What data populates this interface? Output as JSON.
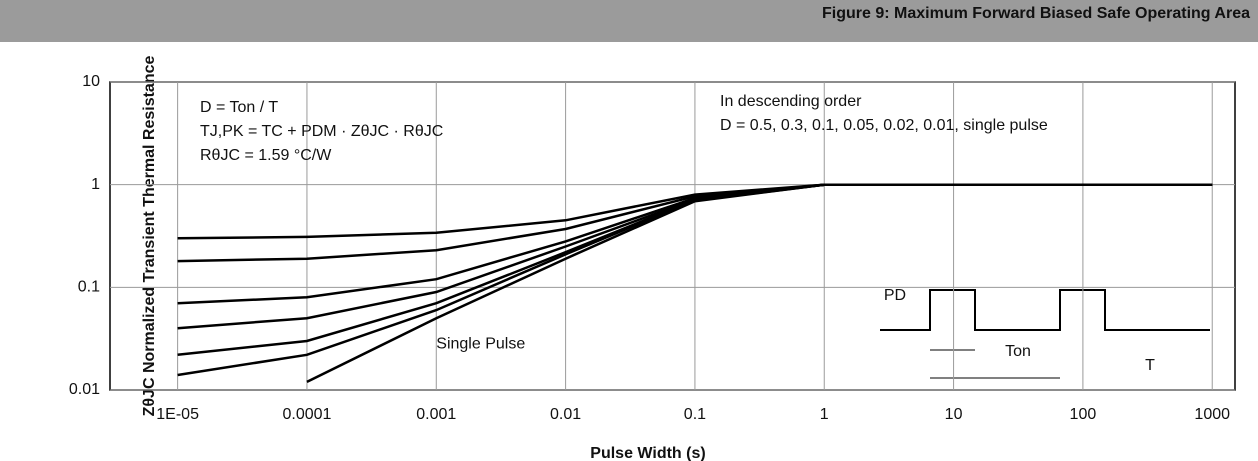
{
  "chart_data": {
    "type": "line",
    "header": "Figure 9: Maximum Forward Biased Safe Operating Area",
    "x_label": "Pulse Width (s)",
    "y_label": "ZθJC Normalized Transient Thermal Resistance",
    "x": [
      1e-05,
      0.0001,
      0.001,
      0.01,
      0.1,
      1,
      10,
      100,
      1000
    ],
    "xscale": "log",
    "yscale": "log",
    "xlim": [
      3e-06,
      1500
    ],
    "ylim": [
      0.01,
      10
    ],
    "xticks": [
      {
        "value": 1e-05,
        "label": "1E-05"
      },
      0.0001,
      0.001,
      0.01,
      0.1,
      1,
      10,
      100,
      1000
    ],
    "yticks": [
      0.01,
      0.1,
      1,
      10
    ],
    "grid": true,
    "series": [
      {
        "color": "#000000",
        "values": [
          0.3,
          0.31,
          0.34,
          0.45,
          0.8,
          1,
          1,
          1,
          1
        ]
      },
      {
        "color": "#000000",
        "values": [
          0.18,
          0.19,
          0.23,
          0.37,
          0.77,
          1,
          1,
          1,
          1
        ]
      },
      {
        "color": "#000000",
        "values": [
          0.07,
          0.08,
          0.12,
          0.28,
          0.74,
          1,
          1,
          1,
          1
        ]
      },
      {
        "color": "#000000",
        "values": [
          0.04,
          0.05,
          0.09,
          0.25,
          0.72,
          1,
          1,
          1,
          1
        ]
      },
      {
        "color": "#000000",
        "values": [
          0.022,
          0.03,
          0.07,
          0.22,
          0.71,
          1,
          1,
          1,
          1
        ]
      },
      {
        "color": "#000000",
        "values": [
          0.014,
          0.022,
          0.06,
          0.21,
          0.7,
          1,
          1,
          1,
          1
        ]
      },
      {
        "name": "Single Pulse",
        "color": "#000000",
        "values": [
          null,
          0.012,
          0.05,
          0.19,
          0.69,
          1,
          1,
          1,
          1
        ]
      }
    ],
    "annotations": [
      "In descending order",
      "D = 0.5, 0.3, 0.1, 0.05, 0.02, 0.01, single pulse",
      "D = Ton / T",
      "TJ,PK = TC + PDM · ZθJC · RθJC",
      "RθJC = 1.59 °C/W",
      "PD",
      "Ton",
      "T"
    ]
  }
}
